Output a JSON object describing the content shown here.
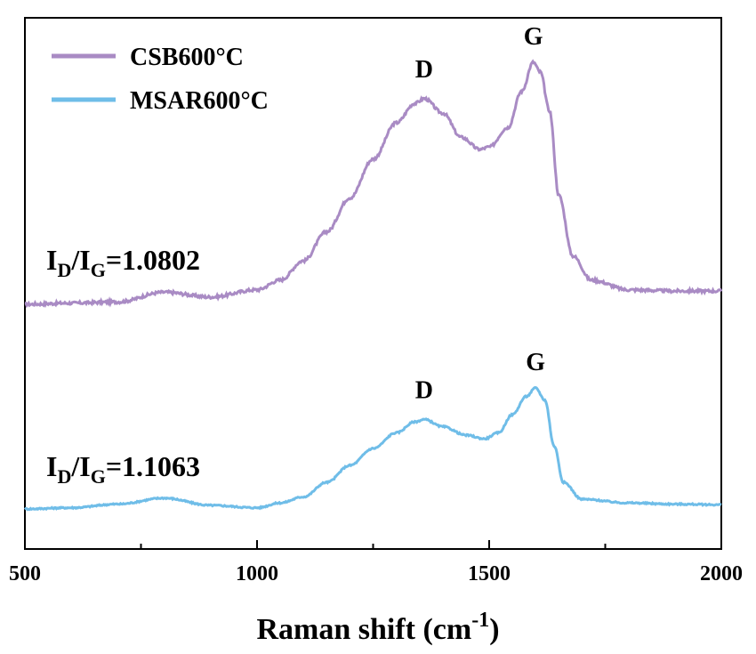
{
  "chart_data": {
    "type": "line",
    "title": "",
    "xlabel": {
      "main": "Raman shift (cm",
      "sup": "-1",
      "close": ")"
    },
    "ylabel": "",
    "xlim": [
      500,
      2000
    ],
    "x_ticks": [
      500,
      1000,
      1500,
      2000
    ],
    "x_tick_labels": [
      "500",
      "1000",
      "1500",
      "2000"
    ],
    "y_ticks_shown": false,
    "grid": false,
    "legend_position": "top-left",
    "series": [
      {
        "name": "CSB600°C",
        "color": "#a98bc4",
        "peaks": [
          {
            "label": "D",
            "x": 1360,
            "y": 0.85
          },
          {
            "label": "G",
            "x": 1595,
            "y": 1.0
          }
        ],
        "ratio": {
          "I": "I",
          "sub1": "D",
          "slash": "/",
          "sub2": "G",
          "value": "=1.0802"
        },
        "points": [
          [
            500,
            0.0
          ],
          [
            600,
            0.005
          ],
          [
            700,
            0.01
          ],
          [
            800,
            0.05
          ],
          [
            900,
            0.03
          ],
          [
            1000,
            0.06
          ],
          [
            1050,
            0.1
          ],
          [
            1100,
            0.18
          ],
          [
            1150,
            0.3
          ],
          [
            1200,
            0.44
          ],
          [
            1250,
            0.6
          ],
          [
            1300,
            0.75
          ],
          [
            1340,
            0.83
          ],
          [
            1360,
            0.85
          ],
          [
            1400,
            0.79
          ],
          [
            1440,
            0.69
          ],
          [
            1480,
            0.64
          ],
          [
            1500,
            0.65
          ],
          [
            1540,
            0.73
          ],
          [
            1570,
            0.88
          ],
          [
            1595,
            1.0
          ],
          [
            1610,
            0.96
          ],
          [
            1630,
            0.8
          ],
          [
            1650,
            0.45
          ],
          [
            1680,
            0.2
          ],
          [
            1720,
            0.1
          ],
          [
            1800,
            0.06
          ],
          [
            1900,
            0.055
          ],
          [
            2000,
            0.055
          ]
        ]
      },
      {
        "name": "MSAR600°C",
        "color": "#6fbde8",
        "peaks": [
          {
            "label": "D",
            "x": 1360,
            "y": 0.74
          },
          {
            "label": "G",
            "x": 1600,
            "y": 1.0
          }
        ],
        "ratio": {
          "I": "I",
          "sub1": "D",
          "slash": "/",
          "sub2": "G",
          "value": "=1.1063"
        },
        "points": [
          [
            500,
            0.0
          ],
          [
            600,
            0.01
          ],
          [
            700,
            0.04
          ],
          [
            800,
            0.09
          ],
          [
            900,
            0.03
          ],
          [
            1000,
            0.01
          ],
          [
            1050,
            0.05
          ],
          [
            1100,
            0.1
          ],
          [
            1150,
            0.22
          ],
          [
            1200,
            0.36
          ],
          [
            1250,
            0.5
          ],
          [
            1300,
            0.63
          ],
          [
            1340,
            0.72
          ],
          [
            1360,
            0.74
          ],
          [
            1400,
            0.68
          ],
          [
            1450,
            0.61
          ],
          [
            1490,
            0.58
          ],
          [
            1520,
            0.63
          ],
          [
            1550,
            0.78
          ],
          [
            1580,
            0.93
          ],
          [
            1600,
            1.0
          ],
          [
            1620,
            0.9
          ],
          [
            1640,
            0.52
          ],
          [
            1660,
            0.22
          ],
          [
            1700,
            0.08
          ],
          [
            1800,
            0.05
          ],
          [
            1900,
            0.04
          ],
          [
            2000,
            0.035
          ]
        ]
      }
    ]
  }
}
